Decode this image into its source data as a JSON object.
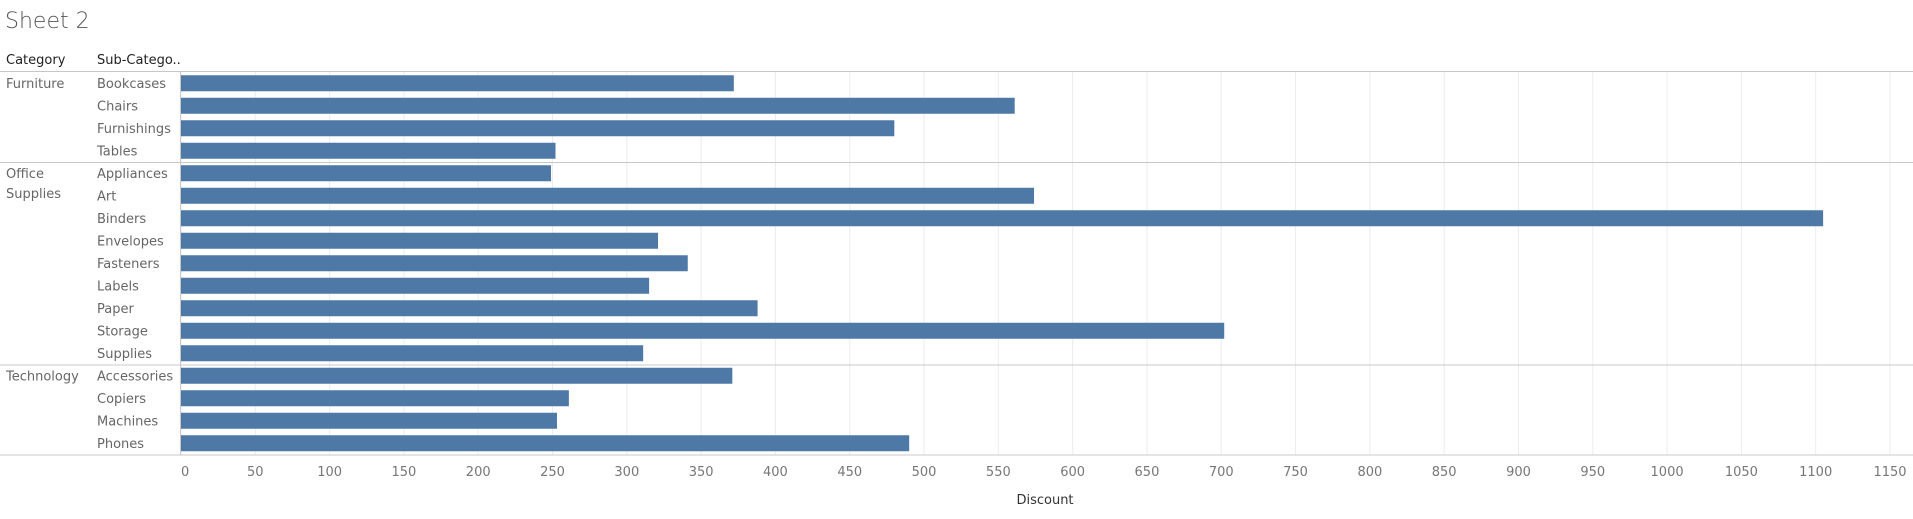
{
  "sheet": {
    "title": "Sheet 2"
  },
  "headers": {
    "category": "Category",
    "subcategory": "Sub-Catego.."
  },
  "colors": {
    "bar": "#4e79a7",
    "grid": "#ececec",
    "separator": "#c8c8c8"
  },
  "chart_data": {
    "type": "bar",
    "orientation": "horizontal",
    "xlabel": "Discount",
    "xlim": [
      0,
      1150
    ],
    "xticks": [
      0,
      50,
      100,
      150,
      200,
      250,
      300,
      350,
      400,
      450,
      500,
      550,
      600,
      650,
      700,
      750,
      800,
      850,
      900,
      950,
      1000,
      1050,
      1100,
      1150
    ],
    "grid": true,
    "groups": [
      {
        "category": "Furniture",
        "items": [
          {
            "name": "Bookcases",
            "value": 372
          },
          {
            "name": "Chairs",
            "value": 561
          },
          {
            "name": "Furnishings",
            "value": 480
          },
          {
            "name": "Tables",
            "value": 252
          }
        ]
      },
      {
        "category": "Office Supplies",
        "items": [
          {
            "name": "Appliances",
            "value": 249
          },
          {
            "name": "Art",
            "value": 574
          },
          {
            "name": "Binders",
            "value": 1105
          },
          {
            "name": "Envelopes",
            "value": 321
          },
          {
            "name": "Fasteners",
            "value": 341
          },
          {
            "name": "Labels",
            "value": 315
          },
          {
            "name": "Paper",
            "value": 388
          },
          {
            "name": "Storage",
            "value": 702
          },
          {
            "name": "Supplies",
            "value": 311
          }
        ]
      },
      {
        "category": "Technology",
        "items": [
          {
            "name": "Accessories",
            "value": 371
          },
          {
            "name": "Copiers",
            "value": 261
          },
          {
            "name": "Machines",
            "value": 253
          },
          {
            "name": "Phones",
            "value": 490
          }
        ]
      }
    ]
  }
}
